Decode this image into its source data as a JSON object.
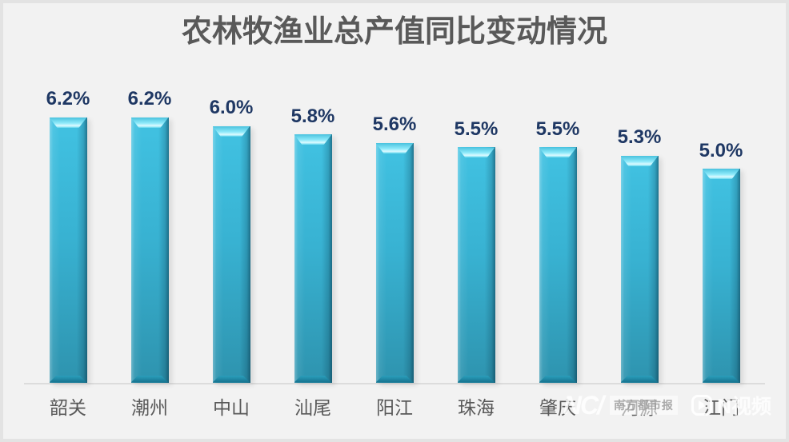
{
  "chart_data": {
    "type": "bar",
    "title": "农林牧渔业总产值同比变动情况",
    "categories": [
      "韶关",
      "潮州",
      "中山",
      "汕尾",
      "阳江",
      "珠海",
      "肇庆",
      "河源",
      "江门"
    ],
    "values": [
      6.2,
      6.2,
      6.0,
      5.8,
      5.6,
      5.5,
      5.5,
      5.3,
      5.0
    ],
    "value_labels": [
      "6.2%",
      "6.2%",
      "6.0%",
      "5.8%",
      "5.6%",
      "5.5%",
      "5.5%",
      "5.3%",
      "5.0%"
    ],
    "unit": "%",
    "xlabel": "",
    "ylabel": "",
    "ylim": [
      0,
      6.8
    ],
    "grid": false,
    "legend": false,
    "value_labels_position": "above-bars",
    "colors": {
      "bar_body": "#35B4D6",
      "bar_highlight": "#8FEAFA",
      "bar_shadow": "#15708C",
      "value_label": "#1F3864",
      "category_label": "#595959",
      "title": "#595959",
      "axis_line": "#DCDCDC",
      "background": "#F2F2F2"
    }
  },
  "watermark": {
    "brand_logo_text": "NC/",
    "brand_name": "南方都市报",
    "video_brand": "N视频"
  }
}
